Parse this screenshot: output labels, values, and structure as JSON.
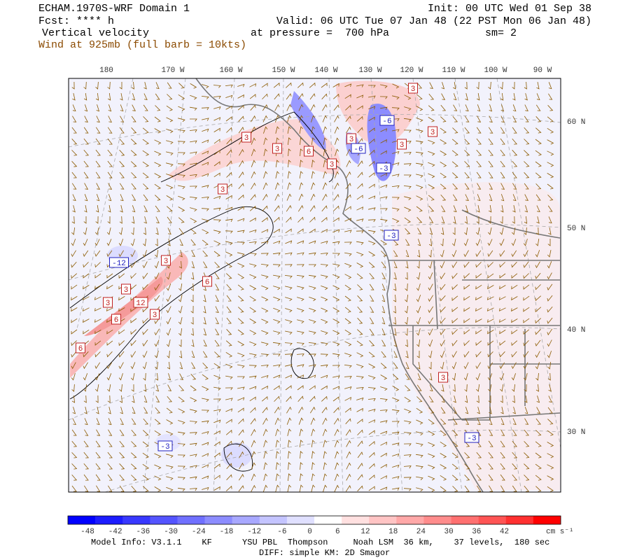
{
  "header": {
    "title": "ECHAM.1970S-WRF Domain 1",
    "forecast": "Fcst: **** h",
    "field": "Vertical velocity",
    "wind_note": "Wind at 925mb (full barb = 10kts)",
    "init": "Init: 00 UTC Wed 01 Sep 38",
    "valid": "Valid: 06 UTC Tue 07 Jan 48 (22 PST Mon 06 Jan 48)",
    "pressure": "at pressure =  700 hPa",
    "smoothing": "sm= 2"
  },
  "map": {
    "longitude_labels": [
      "180",
      "170 W",
      "160 W",
      "150 W",
      "140 W",
      "130 W",
      "120 W",
      "110 W",
      "100 W",
      "90 W"
    ],
    "latitude_labels": [
      "60 N",
      "50 N",
      "40 N",
      "30 N"
    ],
    "contour_labels": [
      "3",
      "3",
      "6",
      "3",
      "3",
      "3",
      "3",
      "3",
      "3",
      "3",
      "6",
      "3",
      "3",
      "12",
      "3",
      "6",
      "6",
      "3",
      "-3",
      "-12",
      "-6",
      "-6",
      "-3",
      "-3",
      "-3"
    ]
  },
  "colorbar": {
    "labels": [
      "-48",
      "-42",
      "-36",
      "-30",
      "-24",
      "-18",
      "-12",
      "-6",
      "0",
      "6",
      "12",
      "18",
      "24",
      "30",
      "36",
      "42"
    ],
    "unit": "cm s⁻¹",
    "colors": [
      "#0000ff",
      "#1c1cff",
      "#3838ff",
      "#5454ff",
      "#7070ff",
      "#8c8cff",
      "#a8a8ff",
      "#c4c4ff",
      "#e0e0ff",
      "#ffffff",
      "#ffe0e0",
      "#ffc4c4",
      "#ffa8a8",
      "#ff8c8c",
      "#ff7070",
      "#ff5454",
      "#ff3030",
      "#ff0000"
    ]
  },
  "footer": {
    "model_info": "Model Info: V3.1.1    KF      YSU PBL  Thompson     Noah LSM  36 km,    37 levels,  180 sec",
    "diff": "DIFF: simple KM: 2D Smagor"
  }
}
